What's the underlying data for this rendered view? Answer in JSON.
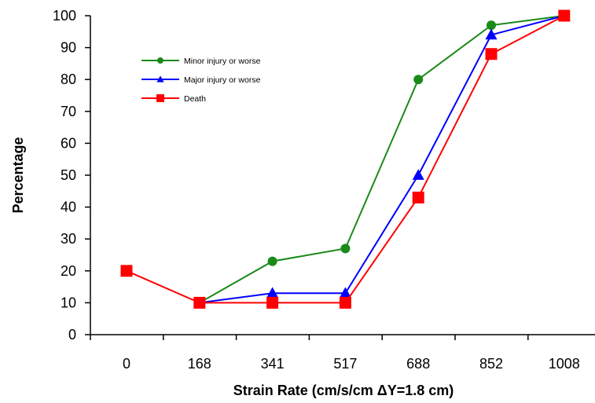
{
  "chart_data": {
    "type": "line",
    "title": "",
    "xlabel": "Strain Rate (cm/s/cm ΔY=1.8 cm)",
    "ylabel": "Percentage",
    "categories": [
      "0",
      "168",
      "341",
      "517",
      "688",
      "852",
      "1008"
    ],
    "ylim": [
      0,
      100
    ],
    "yticks": [
      0,
      10,
      20,
      30,
      40,
      50,
      60,
      70,
      80,
      90,
      100
    ],
    "grid": false,
    "legend_position": "top-left",
    "series": [
      {
        "name": "Minor injury or worse",
        "color": "#1a8a1a",
        "marker": "circle",
        "values": [
          null,
          10,
          23,
          27,
          80,
          97,
          100
        ]
      },
      {
        "name": "Major injury or worse",
        "color": "#0000ff",
        "marker": "triangle",
        "values": [
          null,
          10,
          13,
          13,
          50,
          94,
          100
        ]
      },
      {
        "name": "Death",
        "color": "#ff0000",
        "marker": "square",
        "values": [
          20,
          10,
          10,
          10,
          43,
          88,
          100
        ]
      }
    ]
  }
}
